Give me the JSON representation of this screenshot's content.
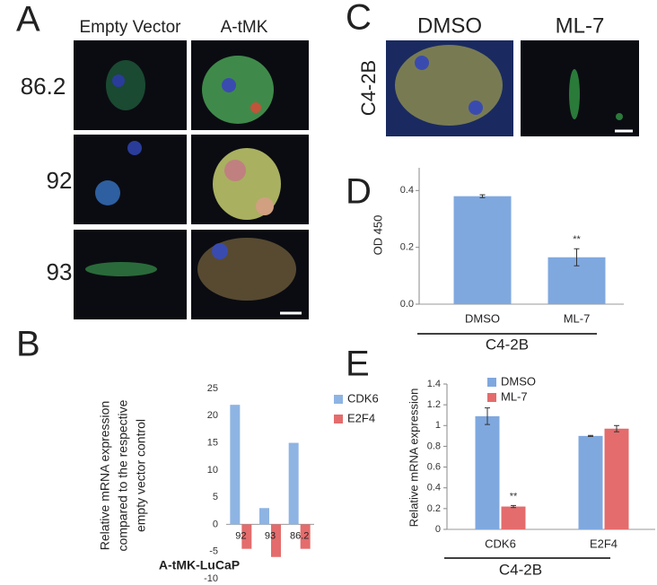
{
  "panel_labels": [
    "A",
    "B",
    "C",
    "D",
    "E"
  ],
  "panel_a": {
    "columns": [
      "Empty Vector",
      "A-tMK"
    ],
    "rows": [
      "86.2",
      "92",
      "93"
    ]
  },
  "panel_c": {
    "columns": [
      "DMSO",
      "ML-7"
    ],
    "row": "C4-2B"
  },
  "chart_data": [
    {
      "type": "bar",
      "ylabel": [
        "Relative mRNA expression",
        "compared to the respective",
        "empty vector control"
      ],
      "xlabel": "A-tMK-LuCaP",
      "categories": [
        "92",
        "93",
        "86.2"
      ],
      "series": [
        {
          "name": "CDK6",
          "color": "#8eb4e3",
          "values": [
            22,
            3,
            15
          ]
        },
        {
          "name": "E2F4",
          "color": "#e46c6c",
          "values": [
            -4.5,
            -6,
            -4.5
          ]
        }
      ],
      "ylim": [
        -10,
        25
      ],
      "yticks": [
        -10,
        -5,
        0,
        5,
        10,
        15,
        20,
        25
      ],
      "legend": "right"
    },
    {
      "type": "bar",
      "ylabel": "OD 450",
      "xlabel": "C4-2B",
      "categories": [
        "DMSO",
        "ML-7"
      ],
      "values": [
        0.38,
        0.165
      ],
      "errors": [
        0.005,
        0.03
      ],
      "color": "#7fa8df",
      "ylim": [
        0,
        0.48
      ],
      "yticks": [
        {
          "value": 0,
          "label": "0.0"
        },
        0.2,
        0.4
      ],
      "annotations": [
        {
          "text": "**",
          "category": 1
        }
      ]
    },
    {
      "type": "bar",
      "ylabel": "Relative mRNA expression",
      "xlabel": "C4-2B",
      "categories": [
        "CDK6",
        "E2F4"
      ],
      "series": [
        {
          "name": "DMSO",
          "color": "#7fa8df",
          "values": [
            1.09,
            0.9
          ],
          "errors": [
            0.08,
            0.005
          ]
        },
        {
          "name": "ML-7",
          "color": "#e46c6c",
          "values": [
            0.22,
            0.97
          ],
          "errors": [
            0.01,
            0.03
          ]
        }
      ],
      "ylim": [
        0,
        1.4
      ],
      "yticks": [
        0,
        0.2,
        0.4,
        0.6,
        0.8,
        1,
        1.2,
        1.4
      ],
      "legend": "top",
      "annotations": [
        {
          "text": "**",
          "category": 0
        }
      ]
    }
  ]
}
